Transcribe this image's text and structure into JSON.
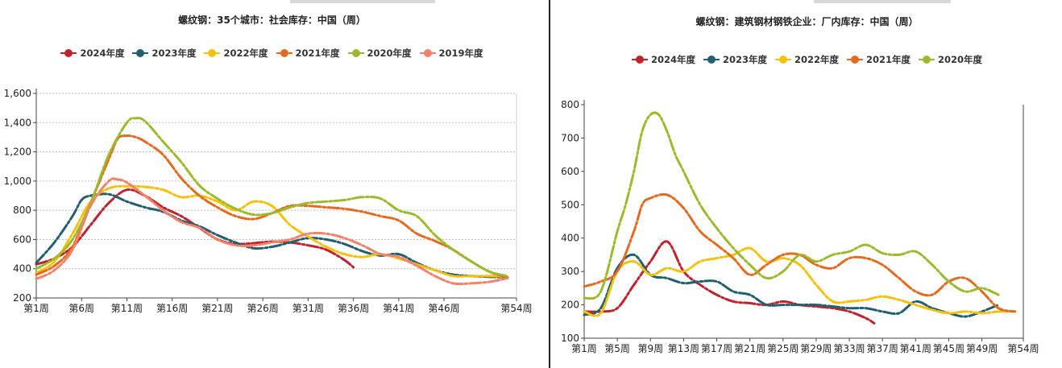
{
  "chart_data": [
    {
      "type": "line",
      "title": "螺纹钢：35个城市：社会库存：中国（周）",
      "xlabel": "",
      "ylabel": "",
      "x_ticks": [
        "第1周",
        "第6周",
        "第11周",
        "第16周",
        "第21周",
        "第26周",
        "第31周",
        "第36周",
        "第41周",
        "第46周",
        "第54周"
      ],
      "x_tick_positions": [
        1,
        6,
        11,
        16,
        21,
        26,
        31,
        36,
        41,
        46,
        54
      ],
      "xlim": [
        1,
        54
      ],
      "ylim": [
        200,
        1600
      ],
      "y_ticks": [
        "200",
        "400",
        "600",
        "800",
        "1,000",
        "1,200",
        "1,400",
        "1,600"
      ],
      "y_tick_values": [
        200,
        400,
        600,
        800,
        1000,
        1200,
        1400,
        1600
      ],
      "grid": true,
      "legend": "top",
      "series": [
        {
          "name": "2024年度",
          "color": "#c0232c",
          "x": [
            1,
            3,
            5,
            7,
            9,
            11,
            13,
            15,
            17,
            19,
            21,
            23,
            25,
            27,
            29,
            31,
            33,
            35,
            36
          ],
          "values": [
            430,
            470,
            550,
            700,
            850,
            940,
            900,
            820,
            760,
            680,
            600,
            570,
            575,
            585,
            580,
            560,
            530,
            460,
            410
          ]
        },
        {
          "name": "2023年度",
          "color": "#21606e",
          "x": [
            1,
            3,
            5,
            6,
            7,
            9,
            11,
            13,
            15,
            17,
            19,
            21,
            23,
            25,
            27,
            29,
            31,
            33,
            35,
            37,
            39,
            41,
            43,
            45,
            47,
            49,
            51,
            53
          ],
          "values": [
            440,
            580,
            760,
            870,
            900,
            910,
            860,
            820,
            790,
            730,
            690,
            630,
            580,
            540,
            550,
            580,
            610,
            600,
            570,
            520,
            490,
            500,
            440,
            390,
            360,
            350,
            345,
            340
          ]
        },
        {
          "name": "2022年度",
          "color": "#f4c20d",
          "x": [
            1,
            3,
            5,
            7,
            9,
            11,
            13,
            15,
            17,
            19,
            21,
            23,
            25,
            27,
            29,
            31,
            33,
            35,
            37,
            39,
            41,
            43,
            45,
            47,
            49,
            51,
            53
          ],
          "values": [
            370,
            450,
            640,
            860,
            950,
            965,
            960,
            940,
            890,
            900,
            860,
            800,
            860,
            830,
            700,
            620,
            550,
            500,
            480,
            500,
            470,
            430,
            390,
            350,
            350,
            350,
            345
          ]
        },
        {
          "name": "2021年度",
          "color": "#e56a1e",
          "x": [
            1,
            3,
            5,
            7,
            9,
            10,
            11,
            12,
            13,
            15,
            17,
            19,
            21,
            23,
            25,
            27,
            29,
            31,
            33,
            35,
            37,
            39,
            41,
            43,
            45,
            47,
            49,
            51,
            53
          ],
          "values": [
            360,
            420,
            550,
            850,
            1150,
            1290,
            1310,
            1300,
            1270,
            1180,
            1020,
            900,
            820,
            760,
            740,
            780,
            830,
            830,
            820,
            810,
            790,
            760,
            730,
            640,
            590,
            530,
            450,
            380,
            340
          ]
        },
        {
          "name": "2020年度",
          "color": "#9bbb2d",
          "x": [
            1,
            3,
            5,
            7,
            9,
            11,
            12,
            13,
            15,
            17,
            19,
            21,
            23,
            25,
            27,
            29,
            31,
            33,
            35,
            37,
            39,
            41,
            43,
            45,
            47,
            49,
            51,
            53
          ],
          "values": [
            400,
            470,
            600,
            850,
            1180,
            1400,
            1430,
            1410,
            1270,
            1130,
            970,
            880,
            810,
            770,
            780,
            820,
            850,
            860,
            870,
            890,
            880,
            800,
            760,
            630,
            530,
            450,
            380,
            350
          ]
        },
        {
          "name": "2019年度",
          "color": "#f4826a",
          "x": [
            1,
            3,
            5,
            7,
            9,
            10,
            11,
            13,
            15,
            17,
            19,
            21,
            23,
            25,
            27,
            29,
            31,
            33,
            35,
            37,
            39,
            41,
            43,
            45,
            47,
            49,
            51,
            53
          ],
          "values": [
            330,
            390,
            530,
            830,
            1000,
            1010,
            990,
            900,
            800,
            720,
            680,
            600,
            560,
            560,
            580,
            600,
            640,
            640,
            610,
            560,
            500,
            480,
            420,
            350,
            300,
            300,
            310,
            335
          ]
        }
      ]
    },
    {
      "type": "line",
      "title": "螺纹钢：建筑钢材钢铁企业：厂内库存：中国（周）",
      "xlabel": "",
      "ylabel": "",
      "x_ticks": [
        "第1周",
        "第5周",
        "第9周",
        "第13周",
        "第17周",
        "第21周",
        "第25周",
        "第29周",
        "第33周",
        "第37周",
        "第41周",
        "第45周",
        "第49周",
        "第54周"
      ],
      "x_tick_positions": [
        1,
        5,
        9,
        13,
        17,
        21,
        25,
        29,
        33,
        37,
        41,
        45,
        49,
        54
      ],
      "xlim": [
        1,
        54
      ],
      "ylim": [
        100,
        800
      ],
      "y_ticks": [
        "100",
        "200",
        "300",
        "400",
        "500",
        "600",
        "700",
        "800"
      ],
      "y_tick_values": [
        100,
        200,
        300,
        400,
        500,
        600,
        700,
        800
      ],
      "grid": false,
      "legend": "top",
      "series": [
        {
          "name": "2024年度",
          "color": "#c0232c",
          "x": [
            1,
            3,
            5,
            7,
            9,
            11,
            13,
            15,
            17,
            19,
            21,
            23,
            25,
            27,
            29,
            31,
            33,
            35,
            36
          ],
          "values": [
            180,
            180,
            190,
            260,
            330,
            390,
            300,
            260,
            230,
            210,
            205,
            200,
            210,
            200,
            195,
            190,
            180,
            160,
            145
          ]
        },
        {
          "name": "2023年度",
          "color": "#21606e",
          "x": [
            1,
            3,
            5,
            7,
            9,
            11,
            13,
            15,
            17,
            19,
            21,
            23,
            25,
            27,
            29,
            31,
            33,
            35,
            37,
            39,
            41,
            43,
            45,
            47,
            49,
            51
          ],
          "values": [
            170,
            190,
            310,
            350,
            290,
            280,
            265,
            270,
            270,
            240,
            230,
            200,
            200,
            200,
            200,
            195,
            190,
            190,
            180,
            175,
            210,
            190,
            175,
            165,
            180,
            200
          ]
        },
        {
          "name": "2022年度",
          "color": "#f4c20d",
          "x": [
            1,
            3,
            5,
            7,
            9,
            11,
            13,
            15,
            17,
            19,
            21,
            23,
            25,
            27,
            29,
            31,
            33,
            35,
            37,
            39,
            41,
            43,
            45,
            47,
            49,
            51,
            53
          ],
          "values": [
            180,
            175,
            300,
            330,
            290,
            310,
            300,
            330,
            340,
            350,
            370,
            330,
            340,
            320,
            260,
            210,
            210,
            215,
            225,
            215,
            200,
            185,
            175,
            180,
            175,
            180,
            180
          ]
        },
        {
          "name": "2021年度",
          "color": "#e56a1e",
          "x": [
            1,
            3,
            5,
            7,
            8,
            9,
            11,
            13,
            15,
            17,
            19,
            21,
            23,
            25,
            27,
            29,
            31,
            33,
            35,
            37,
            39,
            41,
            43,
            45,
            47,
            49,
            51,
            53
          ],
          "values": [
            255,
            270,
            300,
            420,
            500,
            520,
            530,
            490,
            420,
            380,
            340,
            290,
            320,
            350,
            350,
            320,
            310,
            340,
            340,
            320,
            280,
            240,
            230,
            270,
            280,
            240,
            190,
            180
          ]
        },
        {
          "name": "2020年度",
          "color": "#9bbb2d",
          "x": [
            1,
            3,
            5,
            6,
            7,
            8,
            9,
            10,
            11,
            12,
            13,
            15,
            17,
            19,
            21,
            23,
            25,
            27,
            29,
            31,
            33,
            35,
            37,
            39,
            41,
            43,
            45,
            47,
            49,
            51
          ],
          "values": [
            220,
            240,
            420,
            500,
            600,
            720,
            770,
            770,
            720,
            650,
            600,
            500,
            430,
            370,
            320,
            280,
            300,
            350,
            330,
            350,
            360,
            380,
            355,
            350,
            360,
            320,
            270,
            240,
            250,
            230
          ]
        }
      ]
    }
  ]
}
